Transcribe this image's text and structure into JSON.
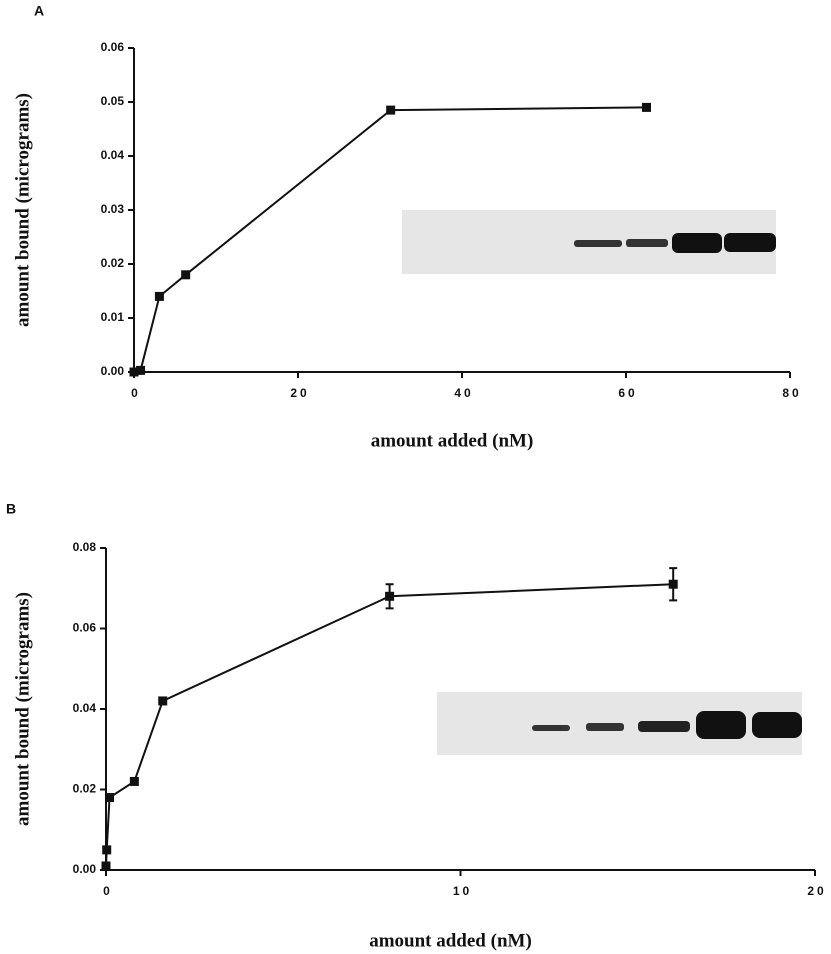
{
  "chart_data": [
    {
      "type": "line",
      "panel_label": "A",
      "x_label": "amount added  (nM)",
      "y_label": "amount bound (micrograms)",
      "x": [
        0,
        0.8,
        3.1,
        6.3,
        31.3,
        62.5
      ],
      "series": [
        {
          "color": "#111111",
          "values": [
            0,
            0.0003,
            0.014,
            0.018,
            0.0485,
            0.049
          ]
        }
      ],
      "xlim": [
        0,
        80
      ],
      "xticks": [
        0,
        20,
        40,
        60,
        80
      ],
      "ylim": [
        0,
        0.06
      ],
      "yticks": [
        {
          "value": 0,
          "label": "0.00"
        },
        0.01,
        0.02,
        0.03,
        0.04,
        0.05,
        0.06
      ]
    },
    {
      "type": "line",
      "panel_label": "B",
      "x_label": "amount added  (nM)",
      "y_label": "amount bound (micrograms)",
      "x": [
        0,
        0.02,
        0.1,
        0.8,
        1.6,
        8,
        16
      ],
      "series": [
        {
          "color": "#111111",
          "values": [
            0.001,
            0.005,
            0.018,
            0.022,
            0.042,
            0.068,
            0.071
          ],
          "errors": [
            null,
            null,
            null,
            null,
            null,
            0.003,
            0.004
          ]
        }
      ],
      "xlim": [
        0,
        20
      ],
      "xticks": [
        0,
        10,
        20
      ],
      "ylim": [
        0,
        0.08
      ],
      "yticks": [
        {
          "value": 0,
          "label": "0.00"
        },
        0.02,
        0.04,
        0.06,
        0.08
      ]
    }
  ]
}
